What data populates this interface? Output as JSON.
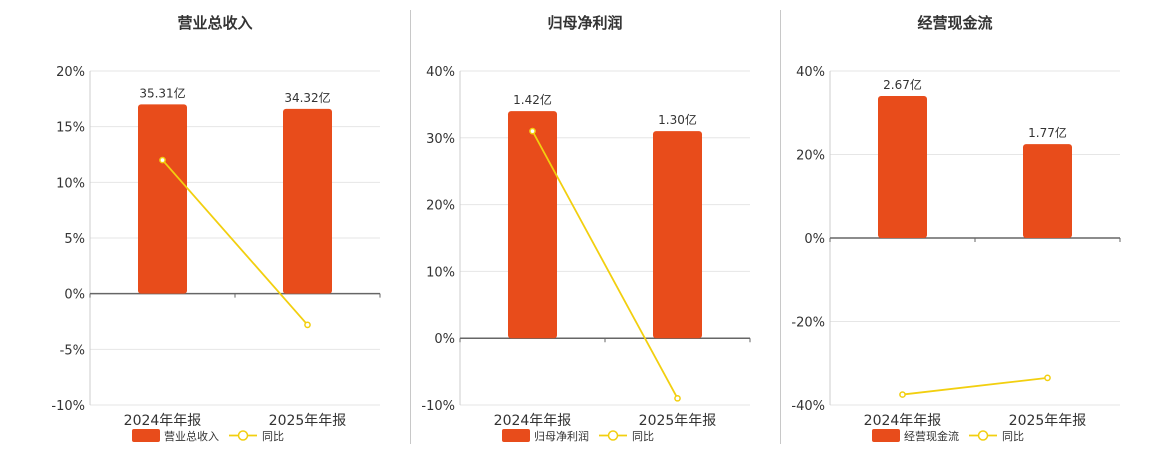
{
  "colors": {
    "bar": "#e84c1b",
    "line": "#f2cf0f",
    "grid": "#e6e6e6",
    "axis": "#666666",
    "text": "#333333"
  },
  "chart_data": [
    {
      "type": "bar",
      "title": "营业总收入",
      "categories": [
        "2024年年报",
        "2025年年报"
      ],
      "bar_labels": [
        "35.31亿",
        "34.32亿"
      ],
      "bar_values": [
        17.0,
        16.6
      ],
      "line_values": [
        12.0,
        -2.8
      ],
      "ylim": [
        -10,
        20
      ],
      "yticks": [
        -10,
        -5,
        0,
        5,
        10,
        15,
        20
      ],
      "legend": {
        "bar": "营业总收入",
        "line": "同比"
      }
    },
    {
      "type": "bar",
      "title": "归母净利润",
      "categories": [
        "2024年年报",
        "2025年年报"
      ],
      "bar_labels": [
        "1.42亿",
        "1.30亿"
      ],
      "bar_values": [
        34.0,
        31.0
      ],
      "line_values": [
        31.0,
        -9.0
      ],
      "ylim": [
        -10,
        40
      ],
      "yticks": [
        -10,
        0,
        10,
        20,
        30,
        40
      ],
      "legend": {
        "bar": "归母净利润",
        "line": "同比"
      }
    },
    {
      "type": "bar",
      "title": "经营现金流",
      "categories": [
        "2024年年报",
        "2025年年报"
      ],
      "bar_labels": [
        "2.67亿",
        "1.77亿"
      ],
      "bar_values": [
        34.0,
        22.5
      ],
      "line_values": [
        -37.5,
        -33.5
      ],
      "ylim": [
        -40,
        40
      ],
      "yticks": [
        -40,
        -20,
        0,
        20,
        40
      ],
      "legend": {
        "bar": "经营现金流",
        "line": "同比"
      }
    }
  ]
}
